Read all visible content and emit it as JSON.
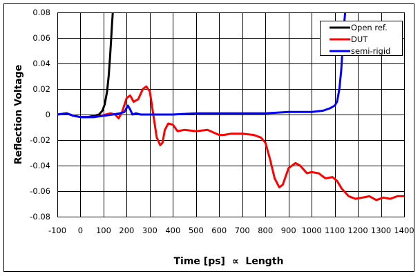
{
  "chart_data": {
    "type": "line",
    "title": "",
    "xlabel": "Time [ps]  ∝  Length",
    "ylabel": "Reflection Voltage",
    "xlim": [
      -100,
      1400
    ],
    "ylim": [
      -0.08,
      0.08
    ],
    "xticks": [
      -100,
      0,
      100,
      200,
      300,
      400,
      500,
      600,
      700,
      800,
      900,
      1000,
      1100,
      1200,
      1300,
      1400
    ],
    "yticks": [
      0.08,
      0.06,
      0.04,
      0.02,
      0,
      -0.02,
      -0.04,
      -0.06,
      -0.08
    ],
    "xtick_labels": [
      "-100",
      "0",
      "100",
      "200",
      "300",
      "400",
      "500",
      "600",
      "700",
      "800",
      "900",
      "1000",
      "1100",
      "1200",
      "1300",
      "1400"
    ],
    "ytick_labels": [
      "0.08",
      "0.06",
      "0.04",
      "0.02",
      "0",
      "-0.02",
      "-0.04",
      "-0.06",
      "-0.08"
    ],
    "grid": true,
    "legend_position": "upper right",
    "series": [
      {
        "name": "Open ref.",
        "color": "#000000",
        "x": [
          -100,
          -60,
          -30,
          0,
          30,
          60,
          80,
          95,
          105,
          115,
          122,
          128,
          133,
          137,
          140
        ],
        "y": [
          0.0,
          0.001,
          -0.001,
          -0.002,
          -0.002,
          -0.001,
          0.0,
          0.003,
          0.008,
          0.018,
          0.03,
          0.045,
          0.06,
          0.072,
          0.08
        ]
      },
      {
        "name": "DUT",
        "color": "#ff0000",
        "x": [
          -100,
          -60,
          -30,
          0,
          30,
          60,
          90,
          110,
          130,
          150,
          165,
          180,
          200,
          215,
          230,
          250,
          270,
          285,
          300,
          315,
          330,
          345,
          355,
          365,
          380,
          400,
          420,
          450,
          500,
          550,
          600,
          620,
          650,
          700,
          750,
          780,
          800,
          820,
          840,
          860,
          875,
          900,
          930,
          950,
          980,
          1000,
          1030,
          1060,
          1090,
          1110,
          1130,
          1160,
          1190,
          1220,
          1250,
          1280,
          1310,
          1340,
          1370,
          1400
        ],
        "y": [
          0.0,
          0.001,
          -0.001,
          -0.002,
          -0.002,
          -0.002,
          -0.001,
          0.0,
          0.001,
          0.0,
          -0.003,
          0.002,
          0.013,
          0.015,
          0.01,
          0.012,
          0.02,
          0.022,
          0.018,
          0.0,
          -0.018,
          -0.024,
          -0.022,
          -0.012,
          -0.007,
          -0.008,
          -0.013,
          -0.012,
          -0.013,
          -0.012,
          -0.016,
          -0.016,
          -0.015,
          -0.015,
          -0.016,
          -0.018,
          -0.022,
          -0.035,
          -0.05,
          -0.057,
          -0.055,
          -0.042,
          -0.038,
          -0.04,
          -0.046,
          -0.045,
          -0.046,
          -0.05,
          -0.049,
          -0.052,
          -0.058,
          -0.064,
          -0.066,
          -0.065,
          -0.064,
          -0.067,
          -0.065,
          -0.066,
          -0.064,
          -0.064
        ]
      },
      {
        "name": "semi-rigid",
        "color": "#0000ff",
        "x": [
          -100,
          -60,
          -30,
          0,
          30,
          60,
          100,
          140,
          170,
          190,
          205,
          215,
          225,
          240,
          260,
          300,
          400,
          500,
          600,
          700,
          800,
          900,
          1000,
          1050,
          1080,
          1100,
          1110,
          1120,
          1128,
          1135,
          1140,
          1145
        ],
        "y": [
          0.0,
          0.001,
          -0.001,
          -0.002,
          -0.002,
          -0.002,
          -0.001,
          0.0,
          0.001,
          0.002,
          0.007,
          0.004,
          0.0,
          0.001,
          0.0,
          0.0,
          0.0,
          0.001,
          0.001,
          0.001,
          0.001,
          0.002,
          0.002,
          0.003,
          0.005,
          0.007,
          0.01,
          0.02,
          0.035,
          0.055,
          0.07,
          0.08
        ]
      }
    ]
  },
  "legend": {
    "items": [
      {
        "label": "Open ref.",
        "color": "#000000"
      },
      {
        "label": "DUT",
        "color": "#ff0000"
      },
      {
        "label": "semi-rigid",
        "color": "#0000ff"
      }
    ]
  },
  "axes": {
    "xlabel": "Time [ps]  ∝  Length",
    "ylabel": "Reflection Voltage"
  }
}
